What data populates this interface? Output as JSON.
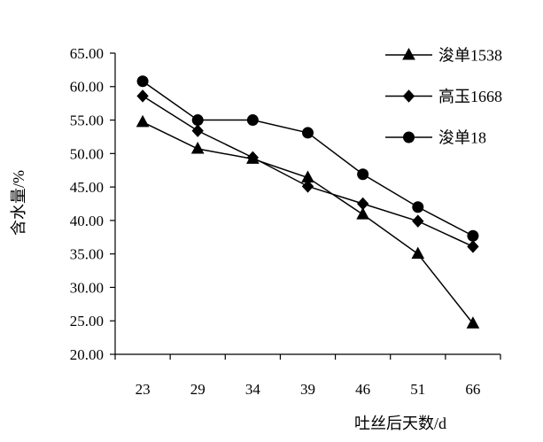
{
  "chart_data": {
    "type": "line",
    "categories": [
      "23",
      "29",
      "34",
      "39",
      "46",
      "51",
      "66"
    ],
    "series": [
      {
        "name": "浚单1538",
        "marker": "triangle",
        "values": [
          54.7,
          50.7,
          49.2,
          46.4,
          40.9,
          35.0,
          24.6
        ]
      },
      {
        "name": "高玉1668",
        "marker": "diamond",
        "values": [
          58.6,
          53.4,
          49.4,
          45.1,
          42.5,
          39.9,
          36.1
        ]
      },
      {
        "name": "浚单18",
        "marker": "circle",
        "values": [
          60.8,
          55.0,
          55.0,
          53.1,
          46.9,
          42.0,
          37.7
        ]
      }
    ],
    "xlabel": "吐丝后天数/d",
    "ylabel": "含水量/%",
    "ylim": [
      20,
      65
    ],
    "ytick_labels": [
      "20.00",
      "25.00",
      "30.00",
      "35.00",
      "40.00",
      "45.00",
      "50.00",
      "55.00",
      "60.00",
      "65.00"
    ],
    "grid": false,
    "legend": "top-right",
    "line_color": "#000000",
    "background_color": "#ffffff"
  }
}
